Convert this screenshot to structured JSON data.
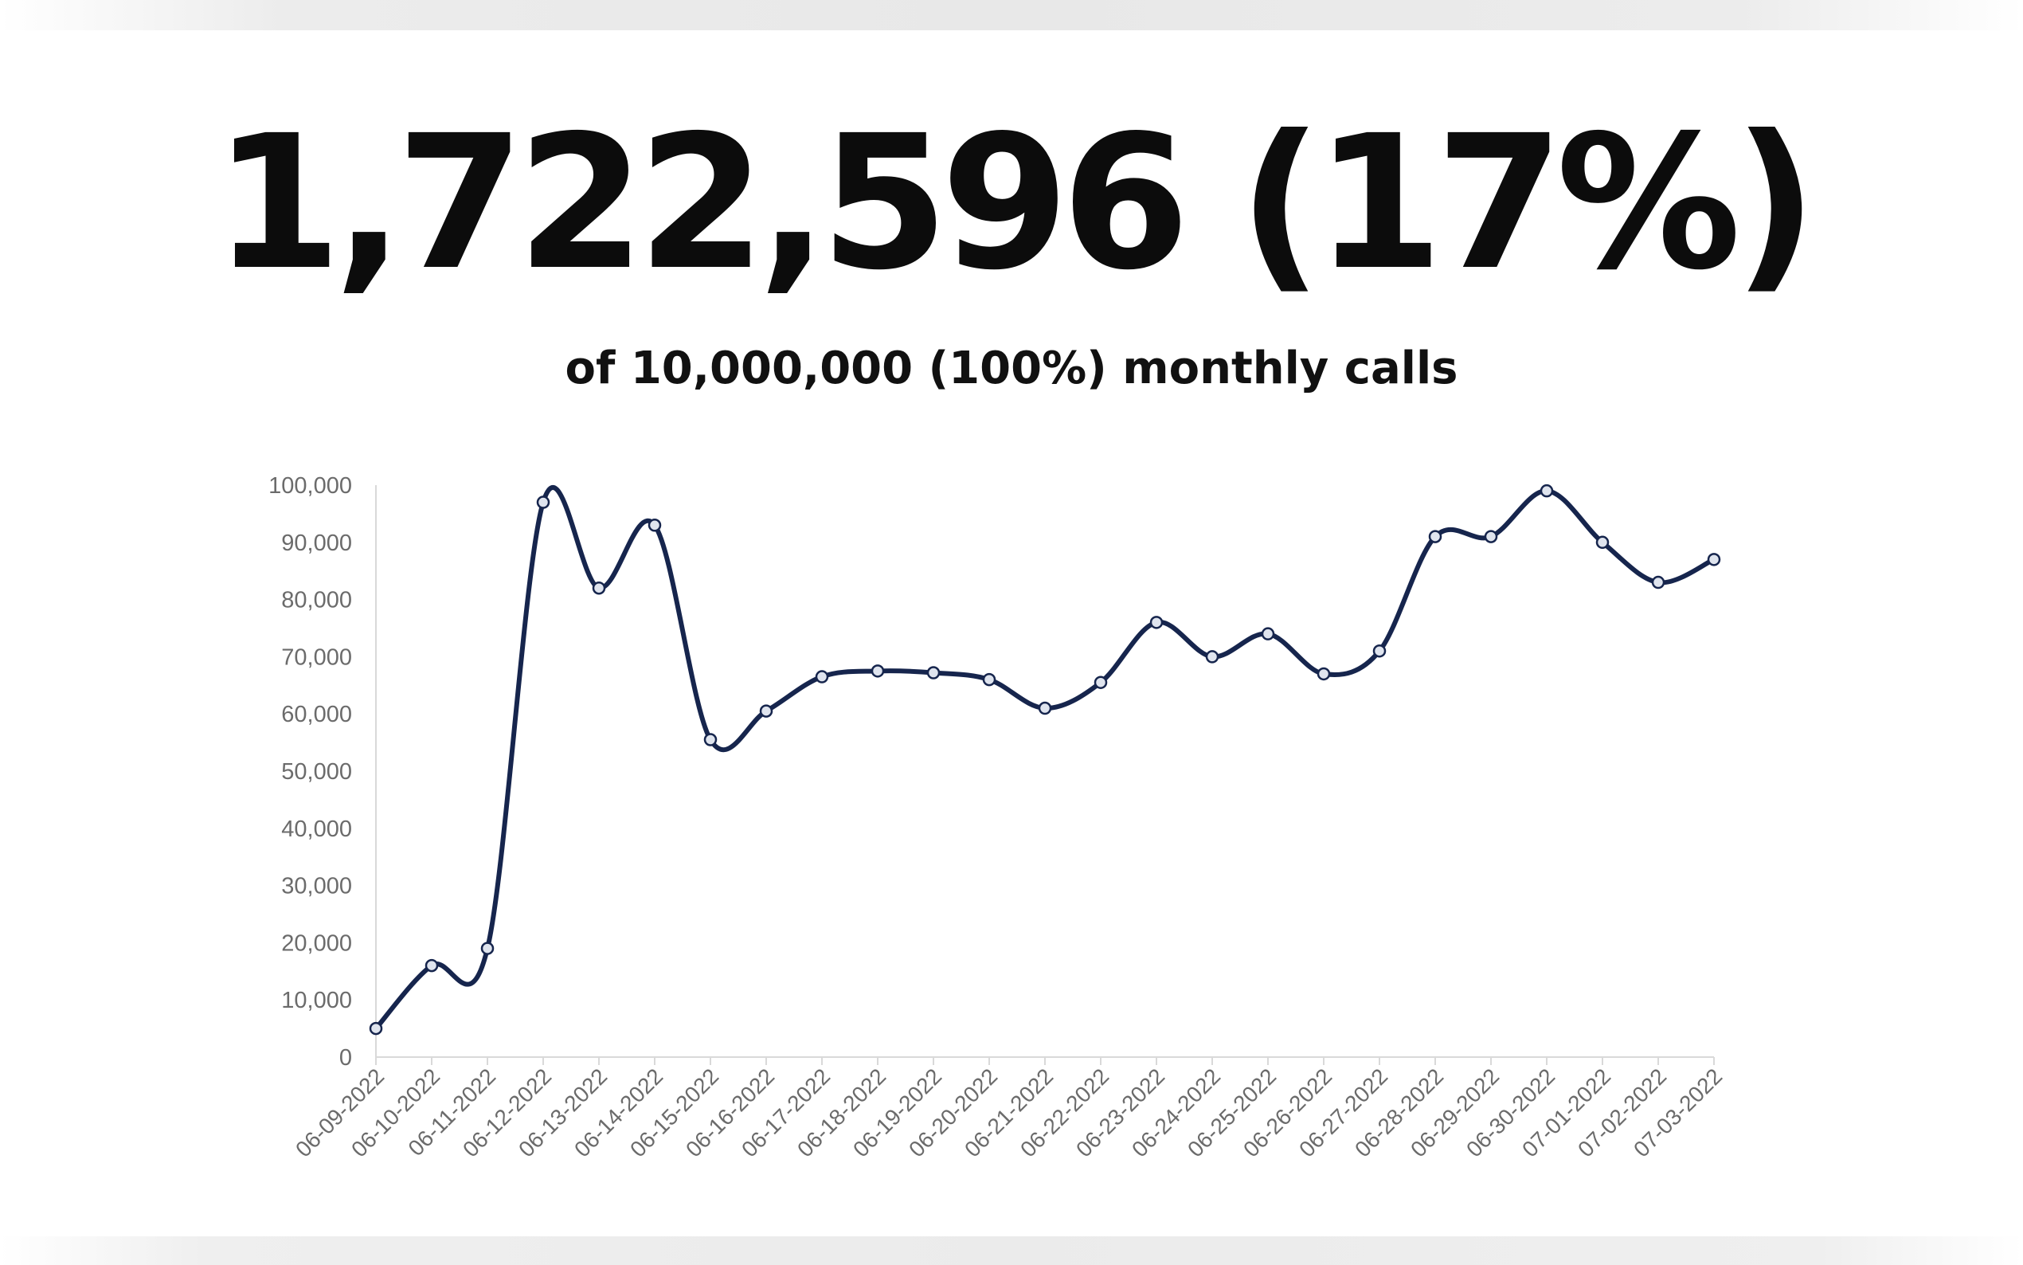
{
  "header": {
    "headline": "1,722,596 (17%)",
    "subline": "of 10,000,000 (100%) monthly calls"
  },
  "colors": {
    "line": "#16254d",
    "axis": "#d9d9d9",
    "tick_text": "#6b6b6b",
    "headline": "#0c0c0c"
  },
  "chart_data": {
    "type": "line",
    "title": "",
    "xlabel": "",
    "ylabel": "",
    "smoothed": true,
    "markers": "hollow-circle",
    "grid": false,
    "ylim": [
      0,
      100000
    ],
    "yticks": [
      "0",
      "10,000",
      "20,000",
      "30,000",
      "40,000",
      "50,000",
      "60,000",
      "70,000",
      "80,000",
      "90,000",
      "100,000"
    ],
    "categories": [
      "06-09-2022",
      "06-10-2022",
      "06-11-2022",
      "06-12-2022",
      "06-13-2022",
      "06-14-2022",
      "06-15-2022",
      "06-16-2022",
      "06-17-2022",
      "06-18-2022",
      "06-19-2022",
      "06-20-2022",
      "06-21-2022",
      "06-22-2022",
      "06-23-2022",
      "06-24-2022",
      "06-25-2022",
      "06-26-2022",
      "06-27-2022",
      "06-28-2022",
      "06-29-2022",
      "06-30-2022",
      "07-01-2022",
      "07-02-2022",
      "07-03-2022"
    ],
    "values": [
      5000,
      16000,
      19000,
      97000,
      82000,
      93000,
      55500,
      60500,
      66500,
      67500,
      67200,
      66000,
      61000,
      65500,
      76000,
      70000,
      74000,
      67000,
      71000,
      91000,
      91000,
      99000,
      90000,
      83000,
      87000
    ]
  }
}
